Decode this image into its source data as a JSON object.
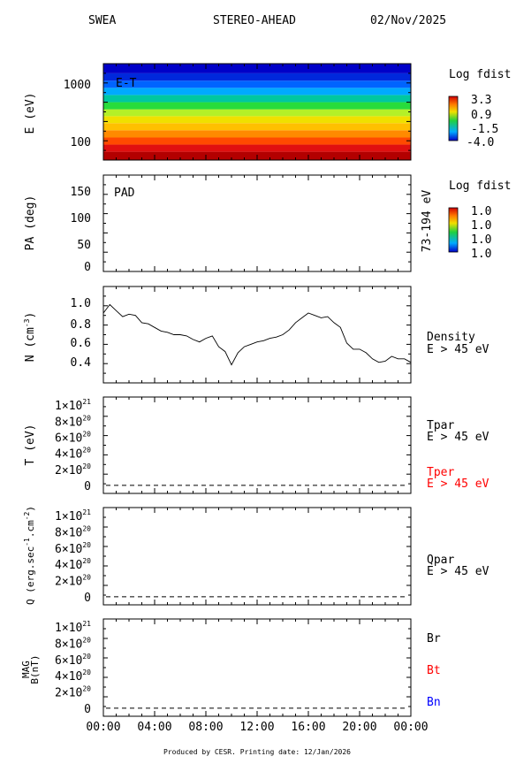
{
  "header": {
    "instrument": "SWEA",
    "spacecraft": "STEREO-AHEAD",
    "date": "02/Nov/2025"
  },
  "footer": "Produced by CESR.   Printing date: 12/Jan/2026",
  "time_axis": [
    "00:00",
    "04:00",
    "08:00",
    "12:00",
    "16:00",
    "20:00",
    "00:00"
  ],
  "chart_data": [
    {
      "type": "heatmap",
      "panel": "energy-time",
      "annotation": "E-T",
      "ylabel": "E (eV)",
      "yscale": "log",
      "ylim": [
        50,
        2200
      ],
      "yticks": [
        "1000",
        "100"
      ],
      "colorbar": {
        "title": "Log fdist",
        "labels": [
          "3.3",
          "0.9",
          "-1.5",
          "-4.0"
        ],
        "colormap": "rainbow"
      },
      "energy_bands_eV": [
        60,
        80,
        105,
        140,
        185,
        245,
        320,
        420,
        560,
        740,
        980,
        1300,
        1750
      ],
      "band_colors": [
        "#b30000",
        "#e01010",
        "#ff4a00",
        "#ff8a00",
        "#ffc000",
        "#f0e000",
        "#b4f028",
        "#28dc3c",
        "#00c8a0",
        "#00aaff",
        "#0064ff",
        "#0028dc",
        "#0000c8"
      ]
    },
    {
      "type": "heatmap",
      "panel": "pitch-angle",
      "annotation": "PAD",
      "ylabel": "PA (deg)",
      "ylim": [
        0,
        180
      ],
      "yticks": [
        "0",
        "50",
        "100",
        "150"
      ],
      "right_label": "73-194 eV",
      "colorbar": {
        "title": "Log fdist",
        "labels": [
          "1.0",
          "1.0",
          "1.0",
          "1.0"
        ],
        "colormap": "rainbow"
      }
    },
    {
      "type": "line",
      "panel": "density",
      "ylabel": "N (cm",
      "ylabel_sup": "-3",
      "ylabel_close": ")",
      "ylim": [
        0.3,
        1.1
      ],
      "yticks": [
        "1.0",
        "0.8",
        "0.6",
        "0.4"
      ],
      "right_labels": [
        "Density",
        "E > 45 eV"
      ],
      "x_hours": [
        0,
        0.5,
        1,
        1.5,
        2,
        2.5,
        3,
        3.5,
        4,
        4.5,
        5,
        5.5,
        6,
        6.5,
        7,
        7.5,
        8,
        8.5,
        9,
        9.5,
        10,
        10.5,
        11,
        11.5,
        12,
        12.5,
        13,
        13.5,
        14,
        14.5,
        15,
        15.5,
        16,
        16.5,
        17,
        17.5,
        18,
        18.5,
        19,
        19.5,
        20,
        20.5,
        21,
        21.5,
        22,
        22.5,
        23,
        23.5,
        24
      ],
      "y": [
        0.88,
        0.95,
        0.9,
        0.85,
        0.87,
        0.86,
        0.8,
        0.79,
        0.76,
        0.73,
        0.72,
        0.7,
        0.7,
        0.69,
        0.66,
        0.64,
        0.67,
        0.69,
        0.6,
        0.56,
        0.45,
        0.55,
        0.6,
        0.62,
        0.64,
        0.65,
        0.67,
        0.68,
        0.7,
        0.74,
        0.8,
        0.84,
        0.88,
        0.86,
        0.84,
        0.85,
        0.8,
        0.76,
        0.63,
        0.58,
        0.58,
        0.55,
        0.5,
        0.47,
        0.48,
        0.52,
        0.5,
        0.5,
        0.47
      ]
    },
    {
      "type": "line",
      "panel": "temperature",
      "ylabel": "T (eV)",
      "ylim": [
        -1e+20,
        1.1e+21
      ],
      "yticks": [
        "1×10",
        "8×10",
        "6×10",
        "4×10",
        "2×10",
        "0"
      ],
      "ytick_exps": [
        "21",
        "20",
        "20",
        "20",
        "20",
        ""
      ],
      "series": [
        {
          "name": "Tpar",
          "sub": "E > 45 eV",
          "color": "#000000",
          "values": [
            0,
            0
          ]
        },
        {
          "name": "Tper",
          "sub": "E > 45 eV",
          "color": "#ff0000",
          "values": [
            0,
            0
          ]
        }
      ]
    },
    {
      "type": "line",
      "panel": "heat-flux",
      "ylabel": "Q (erg.sec",
      "ylim": [
        -1e+20,
        1.1e+21
      ],
      "yticks": [
        "1×10",
        "8×10",
        "6×10",
        "4×10",
        "2×10",
        "0"
      ],
      "ytick_exps": [
        "21",
        "20",
        "20",
        "20",
        "20",
        ""
      ],
      "series": [
        {
          "name": "Qpar",
          "sub": "E > 45 eV",
          "color": "#000000",
          "values": [
            0,
            0
          ]
        }
      ]
    },
    {
      "type": "line",
      "panel": "magnetic-field",
      "ylabel_top": "MAG",
      "ylabel": "B(nT)",
      "ylim": [
        -1e+20,
        1.1e+21
      ],
      "yticks": [
        "1×10",
        "8×10",
        "6×10",
        "4×10",
        "2×10",
        "0"
      ],
      "ytick_exps": [
        "21",
        "20",
        "20",
        "20",
        "20",
        ""
      ],
      "series": [
        {
          "name": "Br",
          "color": "#000000",
          "values": [
            0,
            0
          ]
        },
        {
          "name": "Bt",
          "color": "#ff0000",
          "values": [
            0,
            0
          ]
        },
        {
          "name": "Bn",
          "color": "#0000ff",
          "values": [
            0,
            0
          ]
        }
      ]
    }
  ]
}
